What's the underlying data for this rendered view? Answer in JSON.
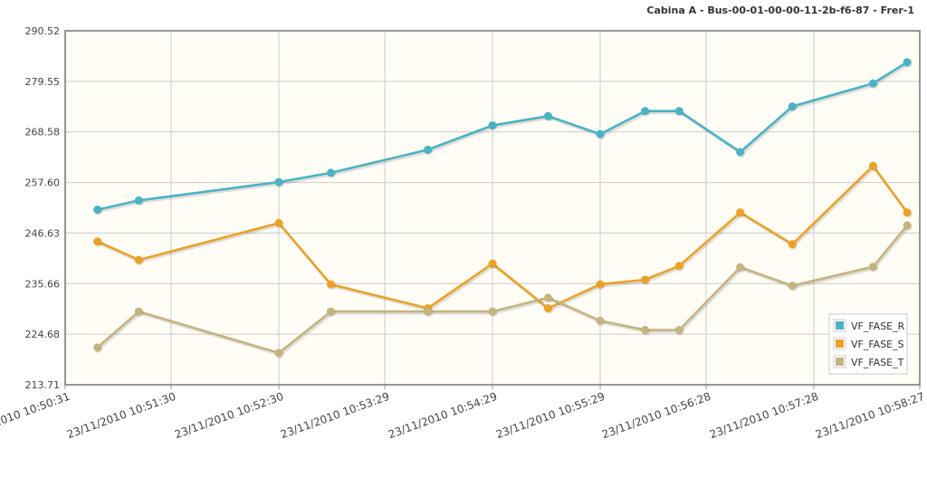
{
  "chart_data": {
    "type": "line",
    "title": "Cabina A - Bus-00-01-00-00-11-2b-f6-87 - Frer-1",
    "xlabel": "",
    "ylabel": "",
    "x_ticks": [
      "23/11/2010 10:50:31",
      "23/11/2010 10:51:30",
      "23/11/2010 10:52:30",
      "23/11/2010 10:53:29",
      "23/11/2010 10:54:29",
      "23/11/2010 10:55:29",
      "23/11/2010 10:56:28",
      "23/11/2010 10:57:28",
      "23/11/2010 10:58:27"
    ],
    "x_tick_times": [
      "10:50:31",
      "10:51:30",
      "10:52:30",
      "10:53:29",
      "10:54:29",
      "10:55:29",
      "10:56:28",
      "10:57:28",
      "10:58:27"
    ],
    "y_ticks": [
      "213.71",
      "224.68",
      "235.66",
      "246.63",
      "257.60",
      "268.58",
      "279.55",
      "290.52"
    ],
    "ylim": [
      213.71,
      290.52
    ],
    "xlim": [
      "10:50:31",
      "10:58:27"
    ],
    "grid": true,
    "legend_position": "bottom-right",
    "x": [
      "10:50:49",
      "10:51:12",
      "10:52:30",
      "10:52:59",
      "10:53:53",
      "10:54:29",
      "10:55:00",
      "10:55:29",
      "10:55:54",
      "10:56:13",
      "10:56:47",
      "10:57:16",
      "10:58:01",
      "10:58:20"
    ],
    "series": [
      {
        "name": "VF_FASE_R",
        "color": "#4bb2c5",
        "values": [
          251.7,
          253.7,
          257.7,
          259.7,
          264.7,
          270.0,
          272.0,
          268.1,
          273.1,
          273.1,
          264.2,
          274.1,
          279.1,
          283.7
        ]
      },
      {
        "name": "VF_FASE_S",
        "color": "#eaa228",
        "values": [
          244.8,
          240.8,
          248.8,
          235.5,
          230.3,
          240.0,
          230.3,
          235.5,
          236.5,
          239.5,
          251.1,
          244.2,
          261.2,
          251.1
        ]
      },
      {
        "name": "VF_FASE_T",
        "color": "#c5b47f",
        "values": [
          221.8,
          229.6,
          220.6,
          229.6,
          229.6,
          229.6,
          232.6,
          227.6,
          225.6,
          225.6,
          239.2,
          235.2,
          239.3,
          248.3
        ]
      }
    ]
  }
}
